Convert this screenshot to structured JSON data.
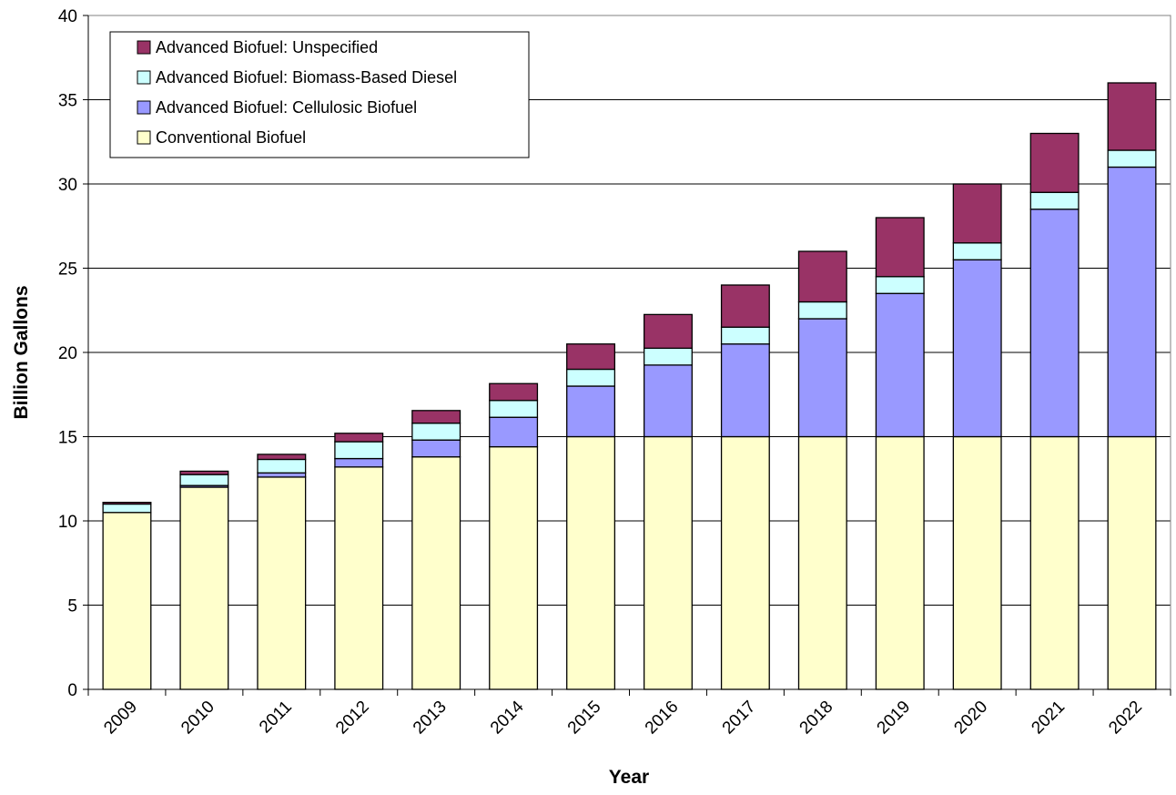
{
  "chart_data": {
    "type": "bar",
    "stacked": true,
    "title": "",
    "xlabel": "Year",
    "ylabel": "Billion Gallons",
    "ylim": [
      0,
      40
    ],
    "yticks": [
      0,
      5,
      10,
      15,
      20,
      25,
      30,
      35,
      40
    ],
    "grid": "horizontal",
    "legend_position": "top-left",
    "categories": [
      "2009",
      "2010",
      "2011",
      "2012",
      "2013",
      "2014",
      "2015",
      "2016",
      "2017",
      "2018",
      "2019",
      "2020",
      "2021",
      "2022"
    ],
    "series": [
      {
        "name": "Conventional Biofuel",
        "color": "#ffffcc",
        "values": [
          10.5,
          12.0,
          12.6,
          13.2,
          13.8,
          14.4,
          15.0,
          15.0,
          15.0,
          15.0,
          15.0,
          15.0,
          15.0,
          15.0
        ]
      },
      {
        "name": "Advanced Biofuel: Cellulosic Biofuel",
        "color": "#9999ff",
        "values": [
          0,
          0.1,
          0.25,
          0.5,
          1.0,
          1.75,
          3.0,
          4.25,
          5.5,
          7.0,
          8.5,
          10.5,
          13.5,
          16.0
        ]
      },
      {
        "name": "Advanced Biofuel: Biomass-Based Diesel",
        "color": "#ccffff",
        "values": [
          0.5,
          0.65,
          0.8,
          1.0,
          1.0,
          1.0,
          1.0,
          1.0,
          1.0,
          1.0,
          1.0,
          1.0,
          1.0,
          1.0
        ]
      },
      {
        "name": "Advanced Biofuel: Unspecified",
        "color": "#993366",
        "values": [
          0.1,
          0.2,
          0.3,
          0.5,
          0.75,
          1.0,
          1.5,
          2.0,
          2.5,
          3.0,
          3.5,
          3.5,
          3.5,
          4.0
        ]
      }
    ],
    "legend_order": [
      3,
      2,
      1,
      0
    ]
  }
}
